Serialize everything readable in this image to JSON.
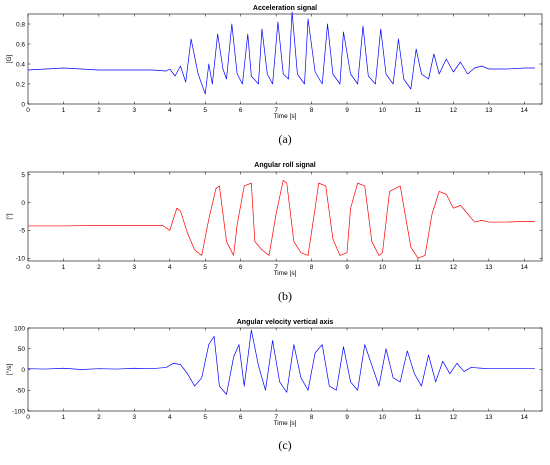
{
  "chart_data": [
    {
      "type": "line",
      "title": "Acceleration signal",
      "xlabel": "Time [s]",
      "ylabel": "[G]",
      "caption": "(a)",
      "xlim": [
        0,
        14.5
      ],
      "ylim": [
        0,
        0.9
      ],
      "xticks": [
        "0",
        "1",
        "2",
        "3",
        "4",
        "5",
        "6",
        "7",
        "8",
        "9",
        "10",
        "11",
        "12",
        "13",
        "14"
      ],
      "yticks": [
        "0",
        "0.2",
        "0.4",
        "0.6",
        "0.8"
      ],
      "ytick_values": [
        0,
        0.2,
        0.4,
        0.6,
        0.8
      ],
      "color": "#0000ff",
      "series": [
        {
          "x": [
            0,
            0.5,
            1,
            1.5,
            2,
            2.5,
            3,
            3.5,
            3.9,
            4.0,
            4.15,
            4.3,
            4.45,
            4.6,
            4.8,
            5.0,
            5.1,
            5.2,
            5.35,
            5.5,
            5.6,
            5.75,
            5.9,
            6.05,
            6.2,
            6.3,
            6.5,
            6.6,
            6.75,
            6.9,
            7.05,
            7.2,
            7.35,
            7.45,
            7.6,
            7.8,
            7.9,
            8.1,
            8.3,
            8.45,
            8.6,
            8.8,
            8.9,
            9.1,
            9.3,
            9.45,
            9.6,
            9.8,
            9.95,
            10.1,
            10.3,
            10.45,
            10.6,
            10.8,
            10.95,
            11.1,
            11.3,
            11.45,
            11.6,
            11.8,
            12.0,
            12.2,
            12.4,
            12.6,
            12.8,
            13.0,
            13.5,
            14.0,
            14.3
          ],
          "y": [
            0.34,
            0.35,
            0.36,
            0.35,
            0.34,
            0.34,
            0.34,
            0.34,
            0.33,
            0.35,
            0.28,
            0.38,
            0.22,
            0.65,
            0.3,
            0.1,
            0.4,
            0.2,
            0.7,
            0.35,
            0.25,
            0.8,
            0.3,
            0.2,
            0.7,
            0.28,
            0.2,
            0.75,
            0.3,
            0.2,
            0.82,
            0.3,
            0.25,
            0.92,
            0.3,
            0.2,
            0.85,
            0.32,
            0.2,
            0.8,
            0.3,
            0.2,
            0.72,
            0.3,
            0.2,
            0.78,
            0.28,
            0.2,
            0.75,
            0.3,
            0.2,
            0.65,
            0.25,
            0.15,
            0.55,
            0.3,
            0.25,
            0.5,
            0.3,
            0.45,
            0.32,
            0.42,
            0.3,
            0.36,
            0.38,
            0.35,
            0.35,
            0.36,
            0.36
          ]
        }
      ]
    },
    {
      "type": "line",
      "title": "Angular roll signal",
      "xlabel": "Time [s]",
      "ylabel": "[°]",
      "caption": "(b)",
      "xlim": [
        0,
        14.5
      ],
      "ylim": [
        -10.5,
        5.5
      ],
      "xticks": [
        "0",
        "1",
        "2",
        "3",
        "4",
        "5",
        "6",
        "7",
        "8",
        "9",
        "10",
        "11",
        "12",
        "13",
        "14"
      ],
      "yticks": [
        "-10",
        "-5",
        "0",
        "5"
      ],
      "ytick_values": [
        -10,
        -5,
        0,
        5
      ],
      "color": "#ff0000",
      "series": [
        {
          "x": [
            0,
            1,
            2,
            3,
            3.8,
            4.0,
            4.2,
            4.3,
            4.5,
            4.7,
            4.9,
            5.1,
            5.3,
            5.4,
            5.6,
            5.8,
            5.9,
            6.1,
            6.3,
            6.4,
            6.6,
            6.8,
            7.0,
            7.2,
            7.3,
            7.5,
            7.7,
            7.9,
            8.1,
            8.2,
            8.4,
            8.6,
            8.8,
            9.0,
            9.1,
            9.3,
            9.5,
            9.7,
            9.9,
            10.0,
            10.2,
            10.5,
            10.8,
            11.0,
            11.2,
            11.4,
            11.6,
            11.8,
            12.0,
            12.2,
            12.4,
            12.6,
            12.8,
            13.0,
            13.5,
            14.0,
            14.3
          ],
          "y": [
            -4.2,
            -4.2,
            -4.1,
            -4.1,
            -4.1,
            -5.0,
            -1.0,
            -1.5,
            -5.5,
            -8.5,
            -9.5,
            -3.0,
            2.5,
            3.0,
            -7.0,
            -9.5,
            -4.0,
            3.0,
            3.5,
            -7.0,
            -8.5,
            -9.5,
            -2.0,
            4.0,
            3.5,
            -7.0,
            -9.0,
            -9.5,
            -1.0,
            3.5,
            3.0,
            -6.5,
            -9.5,
            -9.0,
            -1.0,
            3.5,
            3.0,
            -7.0,
            -9.5,
            -9.0,
            2.0,
            3.0,
            -8.0,
            -10.0,
            -9.5,
            -2.0,
            2.0,
            1.5,
            -1.0,
            -0.5,
            -2.0,
            -3.5,
            -3.2,
            -3.5,
            -3.5,
            -3.4,
            -3.4
          ]
        }
      ]
    },
    {
      "type": "line",
      "title": "Angular velocity vertical axis",
      "xlabel": "Time [s]",
      "ylabel": "[°/s]",
      "caption": "(c)",
      "xlim": [
        0,
        14.5
      ],
      "ylim": [
        -100,
        100
      ],
      "xticks": [
        "0",
        "1",
        "2",
        "3",
        "4",
        "5",
        "6",
        "7",
        "8",
        "9",
        "10",
        "11",
        "12",
        "13",
        "14"
      ],
      "yticks": [
        "-100",
        "-50",
        "0",
        "50",
        "100"
      ],
      "ytick_values": [
        -100,
        -50,
        0,
        50,
        100
      ],
      "color": "#0000ff",
      "series": [
        {
          "x": [
            0,
            0.5,
            1,
            1.5,
            2,
            2.5,
            3,
            3.5,
            3.9,
            4.1,
            4.3,
            4.5,
            4.7,
            4.9,
            5.1,
            5.25,
            5.4,
            5.6,
            5.8,
            5.95,
            6.1,
            6.3,
            6.5,
            6.7,
            6.9,
            7.1,
            7.3,
            7.5,
            7.7,
            7.9,
            8.1,
            8.3,
            8.5,
            8.7,
            8.9,
            9.1,
            9.3,
            9.5,
            9.7,
            9.9,
            10.1,
            10.3,
            10.5,
            10.7,
            10.9,
            11.1,
            11.3,
            11.5,
            11.7,
            11.9,
            12.1,
            12.3,
            12.5,
            12.8,
            13.0,
            13.5,
            14.0,
            14.3
          ],
          "y": [
            2,
            1,
            3,
            0,
            2,
            1,
            3,
            2,
            5,
            15,
            12,
            -10,
            -40,
            -20,
            60,
            80,
            -40,
            -60,
            30,
            60,
            -40,
            95,
            10,
            -50,
            70,
            -30,
            -55,
            60,
            -20,
            -50,
            40,
            60,
            -40,
            -50,
            55,
            -30,
            -50,
            60,
            10,
            -40,
            50,
            -20,
            -30,
            45,
            -10,
            -40,
            35,
            -30,
            20,
            -10,
            15,
            -5,
            5,
            3,
            2,
            2,
            2,
            2
          ]
        }
      ]
    }
  ]
}
